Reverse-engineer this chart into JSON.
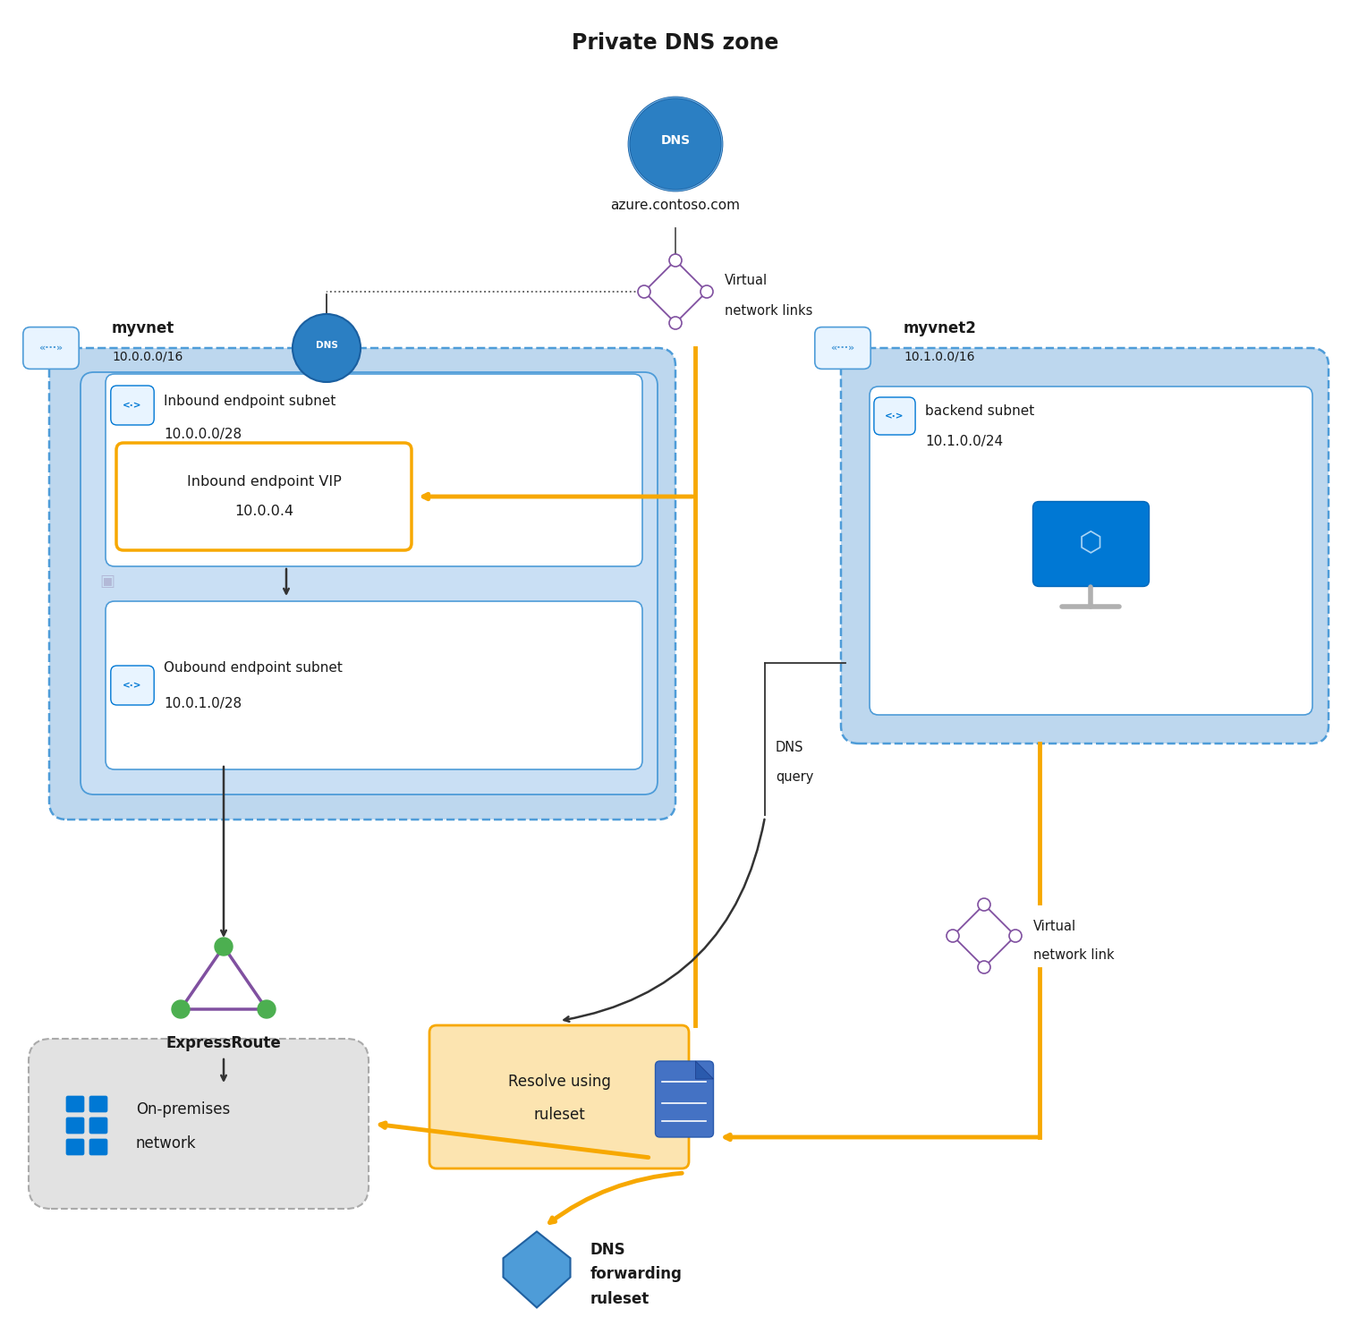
{
  "title": "Private DNS zone",
  "bg_color": "#ffffff",
  "dns_zone_label": "azure.contoso.com",
  "myvnet_label": "myvnet",
  "myvnet_cidr": "10.0.0.0/16",
  "myvnet2_label": "myvnet2",
  "myvnet2_cidr": "10.1.0.0/16",
  "inbound_subnet_label": "Inbound endpoint subnet",
  "inbound_subnet_cidr": "10.0.0.0/28",
  "inbound_vip_line1": "Inbound endpoint VIP",
  "inbound_vip_line2": "10.0.0.4",
  "outbound_subnet_label": "Oubound endpoint subnet",
  "outbound_subnet_cidr": "10.0.1.0/28",
  "backend_subnet_label": "backend subnet",
  "backend_subnet_cidr": "10.1.0.0/24",
  "expressroute_label": "ExpressRoute",
  "onprem_label1": "On-premises",
  "onprem_label2": "network",
  "resolve_label": "Resolve using\nruleset",
  "dns_forwarding_label1": "DNS",
  "dns_forwarding_label2": "forwarding",
  "dns_forwarding_label3": "ruleset",
  "vnet_links_label1": "Virtual",
  "vnet_links_label2": "network links",
  "vnet_link_label1": "Virtual",
  "vnet_link_label2": "network link",
  "dns_query_label1": "DNS",
  "dns_query_label2": "query",
  "col_blue_light": "#bdd7ee",
  "col_blue_mid": "#9dc3e6",
  "col_blue_inner": "#c9dff4",
  "col_white": "#ffffff",
  "col_orange": "#f7a800",
  "col_orange_bg": "#fce4b0",
  "col_gray_bg": "#e2e2e2",
  "col_gray_border": "#aaaaaa",
  "col_blue_border": "#4e9cd8",
  "col_dns_blue": "#2b7fc3",
  "col_azure_blue": "#0078d4",
  "col_text": "#1a1a1a",
  "col_purple": "#8050a0",
  "col_green": "#4caf50",
  "col_black": "#333333"
}
